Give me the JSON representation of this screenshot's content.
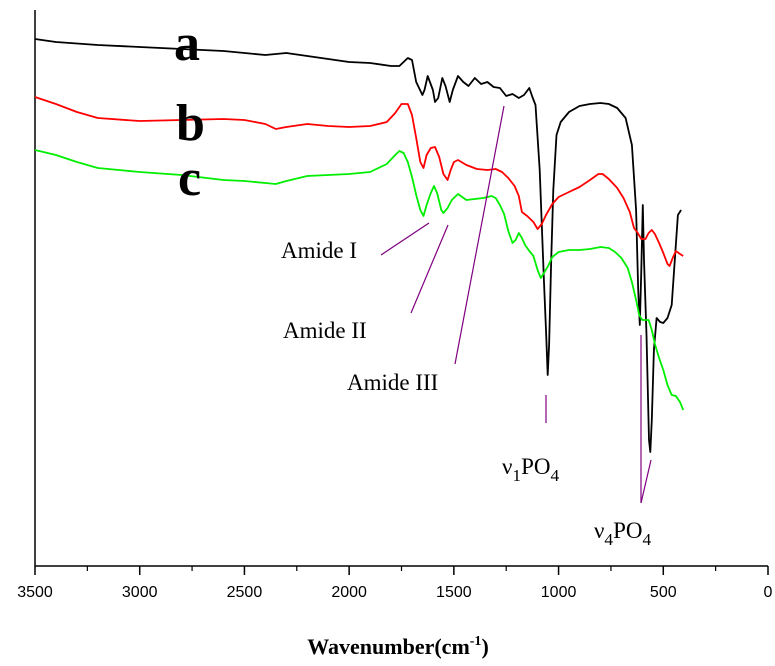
{
  "chart_data": {
    "type": "line",
    "xlabel": {
      "base": "Wavenumber(cm",
      "sup": "-1",
      "tail": ")"
    },
    "ylabel": "",
    "xlim": [
      3500,
      0
    ],
    "x_ticks": [
      3500,
      3000,
      2500,
      2000,
      1500,
      1000,
      500,
      0
    ],
    "y_ticks_shown": false,
    "grid": false,
    "series": [
      {
        "name": "a",
        "color": "#000000",
        "points": [
          [
            3500,
            39
          ],
          [
            3400,
            42
          ],
          [
            3200,
            45
          ],
          [
            3000,
            47
          ],
          [
            2800,
            49
          ],
          [
            2600,
            51
          ],
          [
            2400,
            55
          ],
          [
            2300,
            53
          ],
          [
            2200,
            56
          ],
          [
            2000,
            62
          ],
          [
            1900,
            63
          ],
          [
            1800,
            66
          ],
          [
            1760,
            66
          ],
          [
            1720,
            58
          ],
          [
            1700,
            60
          ],
          [
            1680,
            82
          ],
          [
            1650,
            95
          ],
          [
            1640,
            90
          ],
          [
            1625,
            76
          ],
          [
            1600,
            90
          ],
          [
            1590,
            102
          ],
          [
            1575,
            98
          ],
          [
            1555,
            78
          ],
          [
            1540,
            86
          ],
          [
            1520,
            102
          ],
          [
            1505,
            90
          ],
          [
            1480,
            76
          ],
          [
            1455,
            82
          ],
          [
            1430,
            86
          ],
          [
            1400,
            78
          ],
          [
            1370,
            84
          ],
          [
            1340,
            82
          ],
          [
            1310,
            87
          ],
          [
            1280,
            88
          ],
          [
            1250,
            96
          ],
          [
            1220,
            94
          ],
          [
            1190,
            98
          ],
          [
            1165,
            95
          ],
          [
            1140,
            88
          ],
          [
            1125,
            97
          ],
          [
            1110,
            105
          ],
          [
            1090,
            170
          ],
          [
            1070,
            280
          ],
          [
            1060,
            330
          ],
          [
            1052,
            375
          ],
          [
            1045,
            345
          ],
          [
            1035,
            260
          ],
          [
            1025,
            190
          ],
          [
            1010,
            135
          ],
          [
            990,
            122
          ],
          [
            950,
            112
          ],
          [
            900,
            106
          ],
          [
            850,
            104
          ],
          [
            800,
            103
          ],
          [
            760,
            104
          ],
          [
            720,
            108
          ],
          [
            680,
            118
          ],
          [
            650,
            145
          ],
          [
            630,
            210
          ],
          [
            620,
            290
          ],
          [
            612,
            325
          ],
          [
            605,
            270
          ],
          [
            598,
            205
          ],
          [
            592,
            260
          ],
          [
            580,
            335
          ],
          [
            568,
            440
          ],
          [
            562,
            452
          ],
          [
            555,
            420
          ],
          [
            545,
            350
          ],
          [
            532,
            318
          ],
          [
            515,
            322
          ],
          [
            500,
            323
          ],
          [
            480,
            318
          ],
          [
            460,
            305
          ],
          [
            445,
            260
          ],
          [
            430,
            215
          ],
          [
            415,
            210
          ]
        ]
      },
      {
        "name": "b",
        "color": "#ff0000",
        "points": [
          [
            3500,
            97
          ],
          [
            3400,
            104
          ],
          [
            3300,
            112
          ],
          [
            3200,
            118
          ],
          [
            3000,
            121
          ],
          [
            2800,
            120
          ],
          [
            2600,
            119
          ],
          [
            2500,
            120
          ],
          [
            2400,
            124
          ],
          [
            2350,
            129
          ],
          [
            2300,
            127
          ],
          [
            2200,
            124
          ],
          [
            2100,
            126
          ],
          [
            2000,
            127
          ],
          [
            1900,
            126
          ],
          [
            1820,
            122
          ],
          [
            1780,
            113
          ],
          [
            1750,
            104
          ],
          [
            1720,
            104
          ],
          [
            1700,
            115
          ],
          [
            1680,
            138
          ],
          [
            1660,
            162
          ],
          [
            1645,
            168
          ],
          [
            1630,
            155
          ],
          [
            1610,
            148
          ],
          [
            1590,
            147
          ],
          [
            1570,
            157
          ],
          [
            1550,
            174
          ],
          [
            1530,
            180
          ],
          [
            1515,
            170
          ],
          [
            1500,
            162
          ],
          [
            1480,
            160
          ],
          [
            1440,
            165
          ],
          [
            1390,
            169
          ],
          [
            1340,
            170
          ],
          [
            1300,
            169
          ],
          [
            1270,
            172
          ],
          [
            1240,
            178
          ],
          [
            1210,
            186
          ],
          [
            1190,
            196
          ],
          [
            1175,
            212
          ],
          [
            1150,
            216
          ],
          [
            1120,
            222
          ],
          [
            1100,
            229
          ],
          [
            1080,
            224
          ],
          [
            1060,
            215
          ],
          [
            1030,
            204
          ],
          [
            1000,
            197
          ],
          [
            950,
            192
          ],
          [
            900,
            187
          ],
          [
            850,
            180
          ],
          [
            810,
            174
          ],
          [
            790,
            174
          ],
          [
            760,
            179
          ],
          [
            720,
            188
          ],
          [
            690,
            198
          ],
          [
            660,
            212
          ],
          [
            640,
            228
          ],
          [
            625,
            232
          ],
          [
            605,
            239
          ],
          [
            585,
            239
          ],
          [
            570,
            233
          ],
          [
            555,
            230
          ],
          [
            540,
            234
          ],
          [
            520,
            243
          ],
          [
            500,
            253
          ],
          [
            480,
            264
          ],
          [
            470,
            266
          ],
          [
            455,
            258
          ],
          [
            440,
            251
          ],
          [
            420,
            254
          ],
          [
            405,
            256
          ]
        ]
      },
      {
        "name": "c",
        "color": "#00ee00",
        "points": [
          [
            3500,
            150
          ],
          [
            3400,
            155
          ],
          [
            3300,
            162
          ],
          [
            3200,
            168
          ],
          [
            3000,
            172
          ],
          [
            2800,
            175
          ],
          [
            2600,
            180
          ],
          [
            2500,
            181
          ],
          [
            2400,
            183
          ],
          [
            2350,
            184
          ],
          [
            2300,
            181
          ],
          [
            2200,
            176
          ],
          [
            2100,
            175
          ],
          [
            2000,
            174
          ],
          [
            1900,
            172
          ],
          [
            1820,
            164
          ],
          [
            1780,
            155
          ],
          [
            1760,
            151
          ],
          [
            1740,
            153
          ],
          [
            1720,
            162
          ],
          [
            1700,
            177
          ],
          [
            1680,
            195
          ],
          [
            1660,
            210
          ],
          [
            1645,
            216
          ],
          [
            1630,
            205
          ],
          [
            1610,
            193
          ],
          [
            1595,
            186
          ],
          [
            1580,
            193
          ],
          [
            1560,
            210
          ],
          [
            1550,
            213
          ],
          [
            1530,
            208
          ],
          [
            1510,
            200
          ],
          [
            1480,
            194
          ],
          [
            1440,
            200
          ],
          [
            1400,
            199
          ],
          [
            1360,
            198
          ],
          [
            1320,
            196
          ],
          [
            1300,
            198
          ],
          [
            1280,
            205
          ],
          [
            1260,
            214
          ],
          [
            1240,
            231
          ],
          [
            1220,
            243
          ],
          [
            1205,
            240
          ],
          [
            1190,
            233
          ],
          [
            1175,
            238
          ],
          [
            1160,
            245
          ],
          [
            1140,
            251
          ],
          [
            1120,
            256
          ],
          [
            1100,
            270
          ],
          [
            1085,
            278
          ],
          [
            1070,
            273
          ],
          [
            1050,
            266
          ],
          [
            1030,
            257
          ],
          [
            1000,
            252
          ],
          [
            950,
            250
          ],
          [
            900,
            250
          ],
          [
            850,
            249
          ],
          [
            800,
            247
          ],
          [
            760,
            248
          ],
          [
            730,
            252
          ],
          [
            700,
            258
          ],
          [
            670,
            268
          ],
          [
            650,
            282
          ],
          [
            630,
            300
          ],
          [
            615,
            315
          ],
          [
            600,
            320
          ],
          [
            585,
            320
          ],
          [
            570,
            320
          ],
          [
            555,
            330
          ],
          [
            540,
            344
          ],
          [
            520,
            358
          ],
          [
            500,
            370
          ],
          [
            480,
            385
          ],
          [
            460,
            395
          ],
          [
            440,
            396
          ],
          [
            420,
            402
          ],
          [
            405,
            410
          ]
        ]
      }
    ],
    "annotations": [
      {
        "text": "Amide I",
        "sub": "",
        "tail": ""
      },
      {
        "text": "Amide II",
        "sub": "",
        "tail": ""
      },
      {
        "text": "Amide III",
        "sub": "",
        "tail": ""
      },
      {
        "text": "ν",
        "sub": "1",
        "tail": "PO",
        "sub2": "4"
      },
      {
        "text": "ν",
        "sub": "4",
        "tail": "PO",
        "sub2": "4"
      }
    ],
    "leader_color": "#800080"
  }
}
